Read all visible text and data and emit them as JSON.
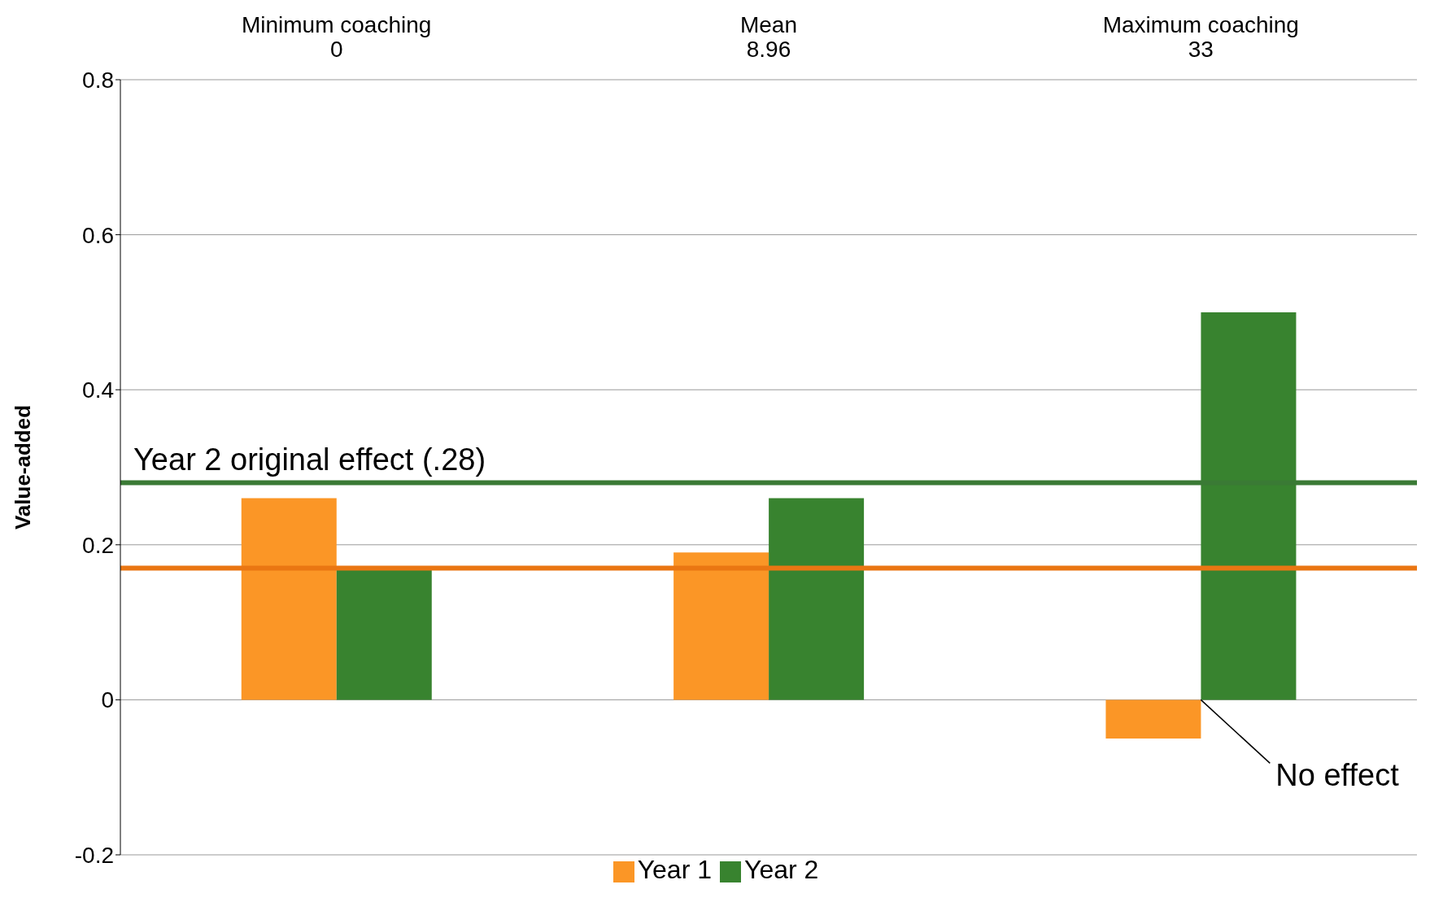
{
  "chart_data": {
    "type": "bar",
    "ylabel": "Value-added",
    "categories": [
      "Minimum coaching\n0",
      "Mean\n8.96",
      "Maximum coaching\n33"
    ],
    "series": [
      {
        "name": "Year 1",
        "color": "#fb9626",
        "values": [
          0.26,
          0.19,
          -0.05
        ]
      },
      {
        "name": "Year 2",
        "color": "#38832f",
        "values": [
          0.17,
          0.26,
          0.5
        ]
      }
    ],
    "ylim": [
      -0.2,
      0.8
    ],
    "yticks": [
      -0.2,
      0,
      0.2,
      0.4,
      0.6,
      0.8
    ],
    "grid": "y",
    "legend": "bottom",
    "ref_lines": [
      {
        "axis": "y",
        "value": 0.28,
        "label": "Year 2 original effect (.28)",
        "color": "#3a7a35"
      },
      {
        "axis": "y",
        "value": 0.17,
        "label": null,
        "color": "#ea7612"
      }
    ],
    "annotations": [
      {
        "text": "No effect",
        "x": "Maximum coaching\n33",
        "y": 0
      }
    ]
  }
}
